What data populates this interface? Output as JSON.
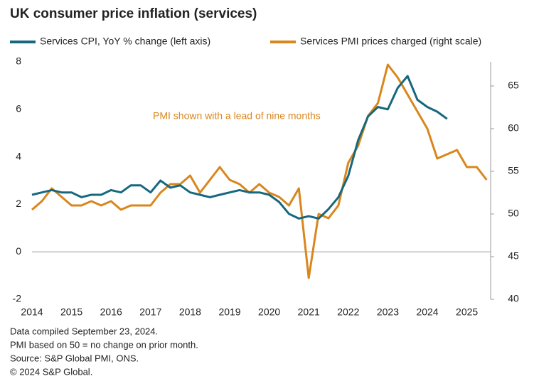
{
  "chart_data": {
    "type": "line",
    "title": "UK consumer price inflation (services)",
    "annotation": "PMI shown with a lead of nine months",
    "notes": [
      "Data compiled September 23, 2024.",
      "PMI based on 50 = no change on prior month.",
      "Source: S&P Global PMI, ONS.",
      "© 2024 S&P Global."
    ],
    "x": [
      2014,
      2014.25,
      2014.5,
      2014.75,
      2015,
      2015.25,
      2015.5,
      2015.75,
      2016,
      2016.25,
      2016.5,
      2016.75,
      2017,
      2017.25,
      2017.5,
      2017.75,
      2018,
      2018.25,
      2018.5,
      2018.75,
      2019,
      2019.25,
      2019.5,
      2019.75,
      2020,
      2020.25,
      2020.5,
      2020.75,
      2021,
      2021.25,
      2021.5,
      2021.75,
      2022,
      2022.25,
      2022.5,
      2022.75,
      2023,
      2023.25,
      2023.5,
      2023.75,
      2024,
      2024.25,
      2024.5,
      2024.75,
      2025,
      2025.25,
      2025.5
    ],
    "xlim": [
      2014,
      2025.6
    ],
    "xticks": [
      2014,
      2015,
      2016,
      2017,
      2018,
      2019,
      2020,
      2021,
      2022,
      2023,
      2024,
      2025
    ],
    "ylim": [
      -2,
      8
    ],
    "yticks": [
      -2,
      0,
      2,
      4,
      6,
      8
    ],
    "y2lim": [
      40,
      67.83
    ],
    "y2ticks": [
      40,
      45,
      50,
      55,
      60,
      65
    ],
    "series": [
      {
        "name": "Services CPI, YoY % change (left axis)",
        "color": "#17677e",
        "values": [
          2.4,
          2.5,
          2.6,
          2.5,
          2.5,
          2.3,
          2.4,
          2.4,
          2.6,
          2.5,
          2.8,
          2.8,
          2.5,
          3.0,
          2.7,
          2.8,
          2.5,
          2.4,
          2.3,
          2.4,
          2.5,
          2.6,
          2.5,
          2.5,
          2.4,
          2.1,
          1.6,
          1.4,
          1.5,
          1.4,
          1.8,
          2.3,
          3.2,
          4.7,
          5.7,
          6.1,
          6.0,
          6.9,
          7.4,
          6.4,
          6.1,
          5.9,
          5.6,
          null,
          null,
          null,
          null
        ]
      },
      {
        "name": "Services PMI prices charged (right scale)",
        "color": "#d9861c",
        "axis": "y2",
        "values": [
          50.5,
          51.5,
          53,
          52,
          51,
          51,
          51.5,
          51,
          51.5,
          50.5,
          51,
          51,
          51,
          52.5,
          53.5,
          53.5,
          54.5,
          52.5,
          54,
          55.5,
          54,
          53.5,
          52.5,
          53.5,
          52.5,
          52,
          51,
          53,
          42.5,
          50,
          49.5,
          51,
          56,
          58,
          61.5,
          63,
          67.5,
          66,
          64,
          62,
          60,
          56.5,
          57,
          57.5,
          55.5,
          55.5,
          54
        ]
      }
    ]
  }
}
